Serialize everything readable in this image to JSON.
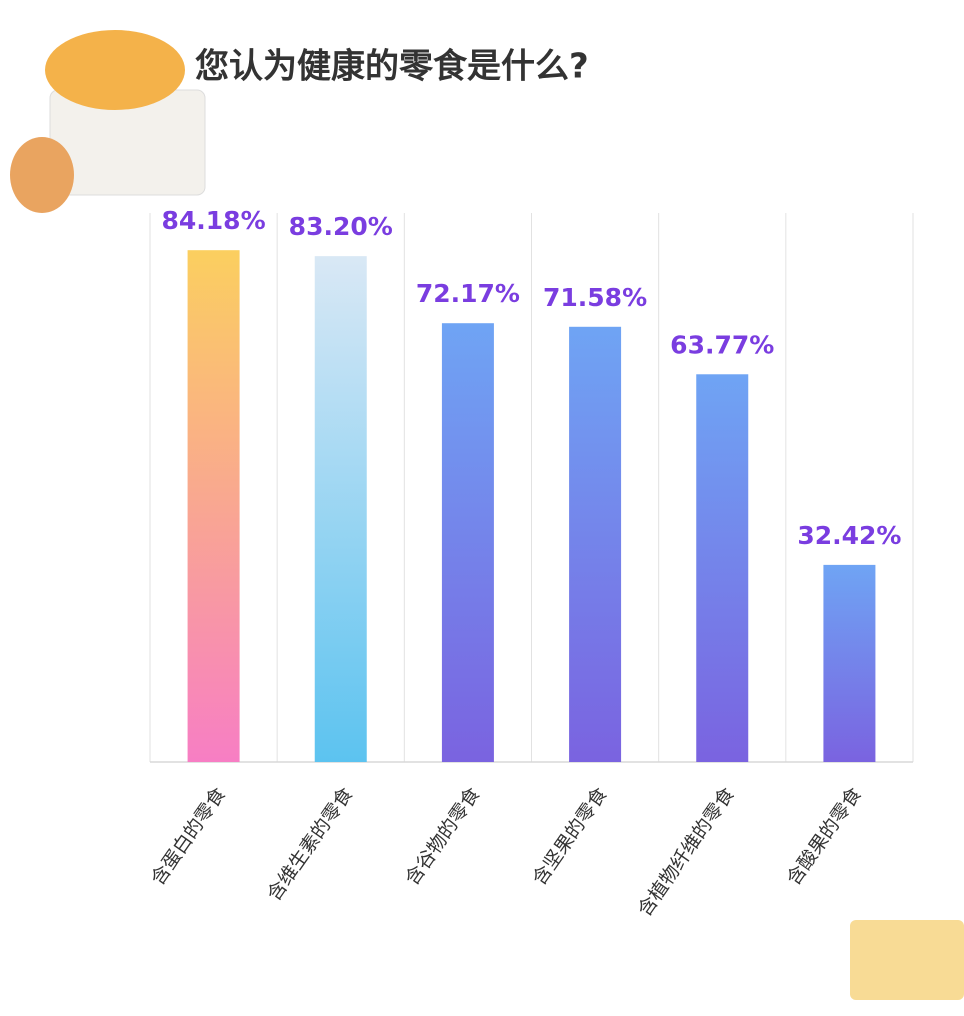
{
  "chart_data": {
    "type": "bar",
    "title": "您认为健康的零食是什么?",
    "categories": [
      "含蛋白的零食",
      "含维生素的零食",
      "含谷物的零食",
      "含坚果的零食",
      "含植物纤维的零食",
      "含酸果的零食"
    ],
    "values": [
      84.18,
      83.2,
      72.17,
      71.58,
      63.77,
      32.42
    ],
    "value_labels": [
      "84.18%",
      "83.20%",
      "72.17%",
      "71.58%",
      "63.77%",
      "32.42%"
    ],
    "colors": [
      [
        "#fbcf5f",
        "#f77ec4"
      ],
      [
        "#d9e8f5",
        "#5cc3f0"
      ],
      [
        "#6fa4f4",
        "#7a63e0"
      ],
      [
        "#6fa4f4",
        "#7a63e0"
      ],
      [
        "#6fa4f4",
        "#7a63e0"
      ],
      [
        "#6fa4f4",
        "#7a63e0"
      ]
    ],
    "ylim": [
      0,
      100
    ],
    "grid": true
  }
}
